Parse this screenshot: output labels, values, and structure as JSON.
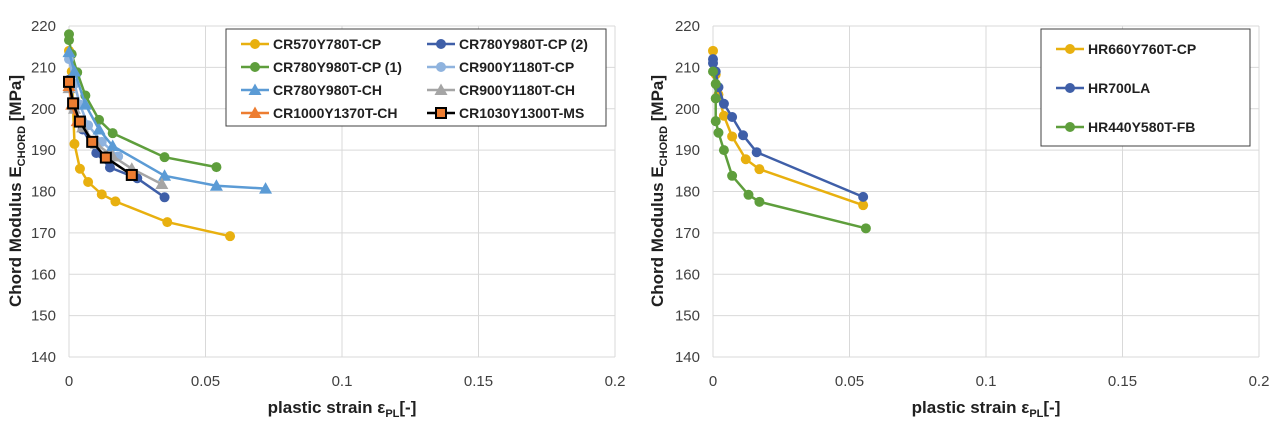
{
  "colors": {
    "yellow": "#E8B00F",
    "blue": "#3F5FA8",
    "green": "#5E9E3C",
    "lightblue": "#8FB3DE",
    "skyblue": "#5B9BD5",
    "gray": "#A5A5A5",
    "orange": "#ED7D31",
    "black": "#000000",
    "grid": "#D9D9D9"
  },
  "chart_data": [
    {
      "type": "line",
      "xlabel": {
        "main": "plastic strain ε",
        "sub": "PL",
        "tail": "[-]"
      },
      "ylabel": {
        "main": "Chord Modulus E",
        "sub": "CHORD",
        "tail": " [MPa]"
      },
      "xlim": [
        0,
        0.2
      ],
      "ylim": [
        140,
        220
      ],
      "xticks": [
        0,
        0.05,
        0.1,
        0.15,
        0.2
      ],
      "xtick_labels": [
        "0",
        "0.05",
        "0.1",
        "0.15",
        "0.2"
      ],
      "yticks": [
        140,
        150,
        160,
        170,
        180,
        190,
        200,
        210,
        220
      ],
      "grid": true,
      "legend_position": "top-right",
      "legend_columns": 2,
      "series": [
        {
          "name": "CR570Y780T-CP",
          "color": "yellow",
          "marker": "circle",
          "x": [
            0,
            0.001,
            0.002,
            0.004,
            0.007,
            0.012,
            0.017,
            0.036,
            0.059
          ],
          "y": [
            214,
            209,
            191.5,
            185.5,
            182.3,
            179.3,
            177.6,
            172.6,
            169.2
          ]
        },
        {
          "name": "CR780Y980T-CP (2)",
          "color": "blue",
          "marker": "circle",
          "x": [
            0,
            0.002,
            0.005,
            0.01,
            0.015,
            0.025,
            0.035
          ],
          "y": [
            207,
            200,
            195,
            189.3,
            185.8,
            183.2,
            178.6
          ]
        },
        {
          "name": "CR780Y980T-CP (1)",
          "color": "green",
          "marker": "circle",
          "x": [
            0,
            0,
            0.001,
            0.003,
            0.006,
            0.011,
            0.016,
            0.035,
            0.054
          ],
          "y": [
            218,
            216.6,
            213.2,
            208.8,
            203.2,
            197.3,
            194.1,
            188.3,
            185.9
          ]
        },
        {
          "name": "CR900Y1180T-CP",
          "color": "lightblue",
          "marker": "circle",
          "x": [
            0,
            0.002,
            0.004,
            0.007,
            0.012,
            0.018
          ],
          "y": [
            212,
            206,
            201,
            196,
            192,
            188.5
          ]
        },
        {
          "name": "CR780Y980T-CH",
          "color": "skyblue",
          "marker": "triangle",
          "x": [
            0,
            0.002,
            0.006,
            0.011,
            0.016,
            0.035,
            0.054,
            0.072
          ],
          "y": [
            213.7,
            209,
            201,
            195,
            191,
            183.8,
            181.4,
            180.7
          ]
        },
        {
          "name": "CR900Y1180T-CH",
          "color": "gray",
          "marker": "triangle",
          "x": [
            0,
            0.002,
            0.005,
            0.01,
            0.016,
            0.023,
            0.034
          ],
          "y": [
            205,
            200,
            195.5,
            191.5,
            188.5,
            185.5,
            181.8
          ]
        },
        {
          "name": "CR1000Y1370T-CH",
          "color": "orange",
          "marker": "triangle",
          "x": [
            0,
            0.001,
            0.003
          ],
          "y": [
            205.5,
            201,
            197
          ]
        },
        {
          "name": "CR1030Y1300T-MS",
          "color": "black",
          "marker": "square",
          "fill": "orange",
          "x": [
            0,
            0.0015,
            0.004,
            0.0085,
            0.0135,
            0.023
          ],
          "y": [
            206.5,
            201.3,
            196.9,
            192,
            188.2,
            184
          ]
        }
      ]
    },
    {
      "type": "line",
      "xlabel": {
        "main": "plastic strain ε",
        "sub": "PL",
        "tail": "[-]"
      },
      "ylabel": {
        "main": "Chord Modulus E",
        "sub": "CHORD",
        "tail": " [MPa]"
      },
      "xlim": [
        0,
        0.2
      ],
      "ylim": [
        140,
        220
      ],
      "xticks": [
        0,
        0.05,
        0.1,
        0.15,
        0.2
      ],
      "xtick_labels": [
        "0",
        "0.05",
        "0.1",
        "0.15",
        "0.2"
      ],
      "yticks": [
        140,
        150,
        160,
        170,
        180,
        190,
        200,
        210,
        220
      ],
      "grid": true,
      "legend_position": "top-right",
      "legend_columns": 1,
      "series": [
        {
          "name": "HR660Y760T-CP",
          "color": "yellow",
          "marker": "circle",
          "x": [
            0,
            0.001,
            0.002,
            0.004,
            0.007,
            0.012,
            0.017,
            0.055
          ],
          "y": [
            214,
            208.3,
            203.4,
            198.3,
            193.3,
            187.8,
            185.4,
            176.7
          ]
        },
        {
          "name": "HR700LA",
          "color": "blue",
          "marker": "circle",
          "x": [
            0,
            0,
            0.001,
            0.002,
            0.004,
            0.007,
            0.011,
            0.016,
            0.055
          ],
          "y": [
            212,
            211,
            209,
            205.2,
            201.2,
            198,
            193.6,
            189.5,
            178.7
          ]
        },
        {
          "name": "HR440Y580T-FB",
          "color": "green",
          "marker": "circle",
          "x": [
            0,
            0.001,
            0.001,
            0.001,
            0.002,
            0.004,
            0.007,
            0.013,
            0.017,
            0.056
          ],
          "y": [
            209,
            206,
            202.5,
            197,
            194.2,
            190,
            183.8,
            179.2,
            177.5,
            171.1
          ]
        }
      ]
    }
  ]
}
